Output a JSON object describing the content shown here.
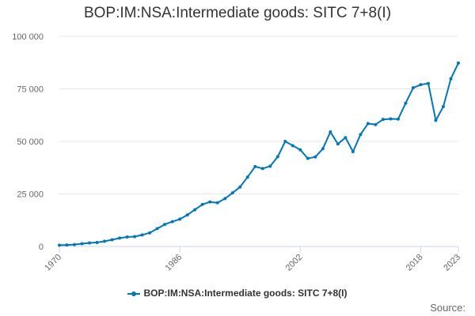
{
  "chart_data": {
    "type": "line",
    "title": "BOP:IM:NSA:Intermediate goods: SITC 7+8(I)",
    "xlabel": "",
    "ylabel": "",
    "ylim": [
      0,
      100000
    ],
    "xlim": [
      1970,
      2023
    ],
    "grid": true,
    "legend_position": "bottom",
    "y_ticks": [
      0,
      25000,
      50000,
      75000,
      100000
    ],
    "y_tick_labels": [
      "0",
      "25 000",
      "50 000",
      "75 000",
      "100 000"
    ],
    "x_ticks": [
      1970,
      1986,
      2002,
      2018,
      2023
    ],
    "x_tick_labels": [
      "1970",
      "1986",
      "2002",
      "2018",
      "2023"
    ],
    "series": [
      {
        "name": "BOP:IM:NSA:Intermediate goods: SITC 7+8(I)",
        "color": "#0077bb",
        "x": [
          1970,
          1971,
          1972,
          1973,
          1974,
          1975,
          1976,
          1977,
          1978,
          1979,
          1980,
          1981,
          1982,
          1983,
          1984,
          1985,
          1986,
          1987,
          1988,
          1989,
          1990,
          1991,
          1992,
          1993,
          1994,
          1995,
          1996,
          1997,
          1998,
          1999,
          2000,
          2001,
          2002,
          2003,
          2004,
          2005,
          2006,
          2007,
          2008,
          2009,
          2010,
          2011,
          2012,
          2013,
          2014,
          2015,
          2016,
          2017,
          2018,
          2019,
          2020,
          2021,
          2022,
          2023
        ],
        "values": [
          600,
          700,
          900,
          1300,
          1700,
          1900,
          2500,
          3200,
          4000,
          4500,
          4700,
          5500,
          6500,
          8500,
          10500,
          11800,
          13000,
          15000,
          17500,
          20000,
          21200,
          20800,
          22800,
          25500,
          28300,
          33000,
          38000,
          37100,
          38200,
          42700,
          50000,
          48000,
          46000,
          41900,
          42600,
          46500,
          54500,
          48800,
          51800,
          45100,
          53300,
          58500,
          58000,
          60500,
          60700,
          60600,
          68200,
          75500,
          77000,
          77600,
          60000,
          66600,
          79800,
          87300
        ]
      }
    ]
  },
  "source_label": "Source:"
}
